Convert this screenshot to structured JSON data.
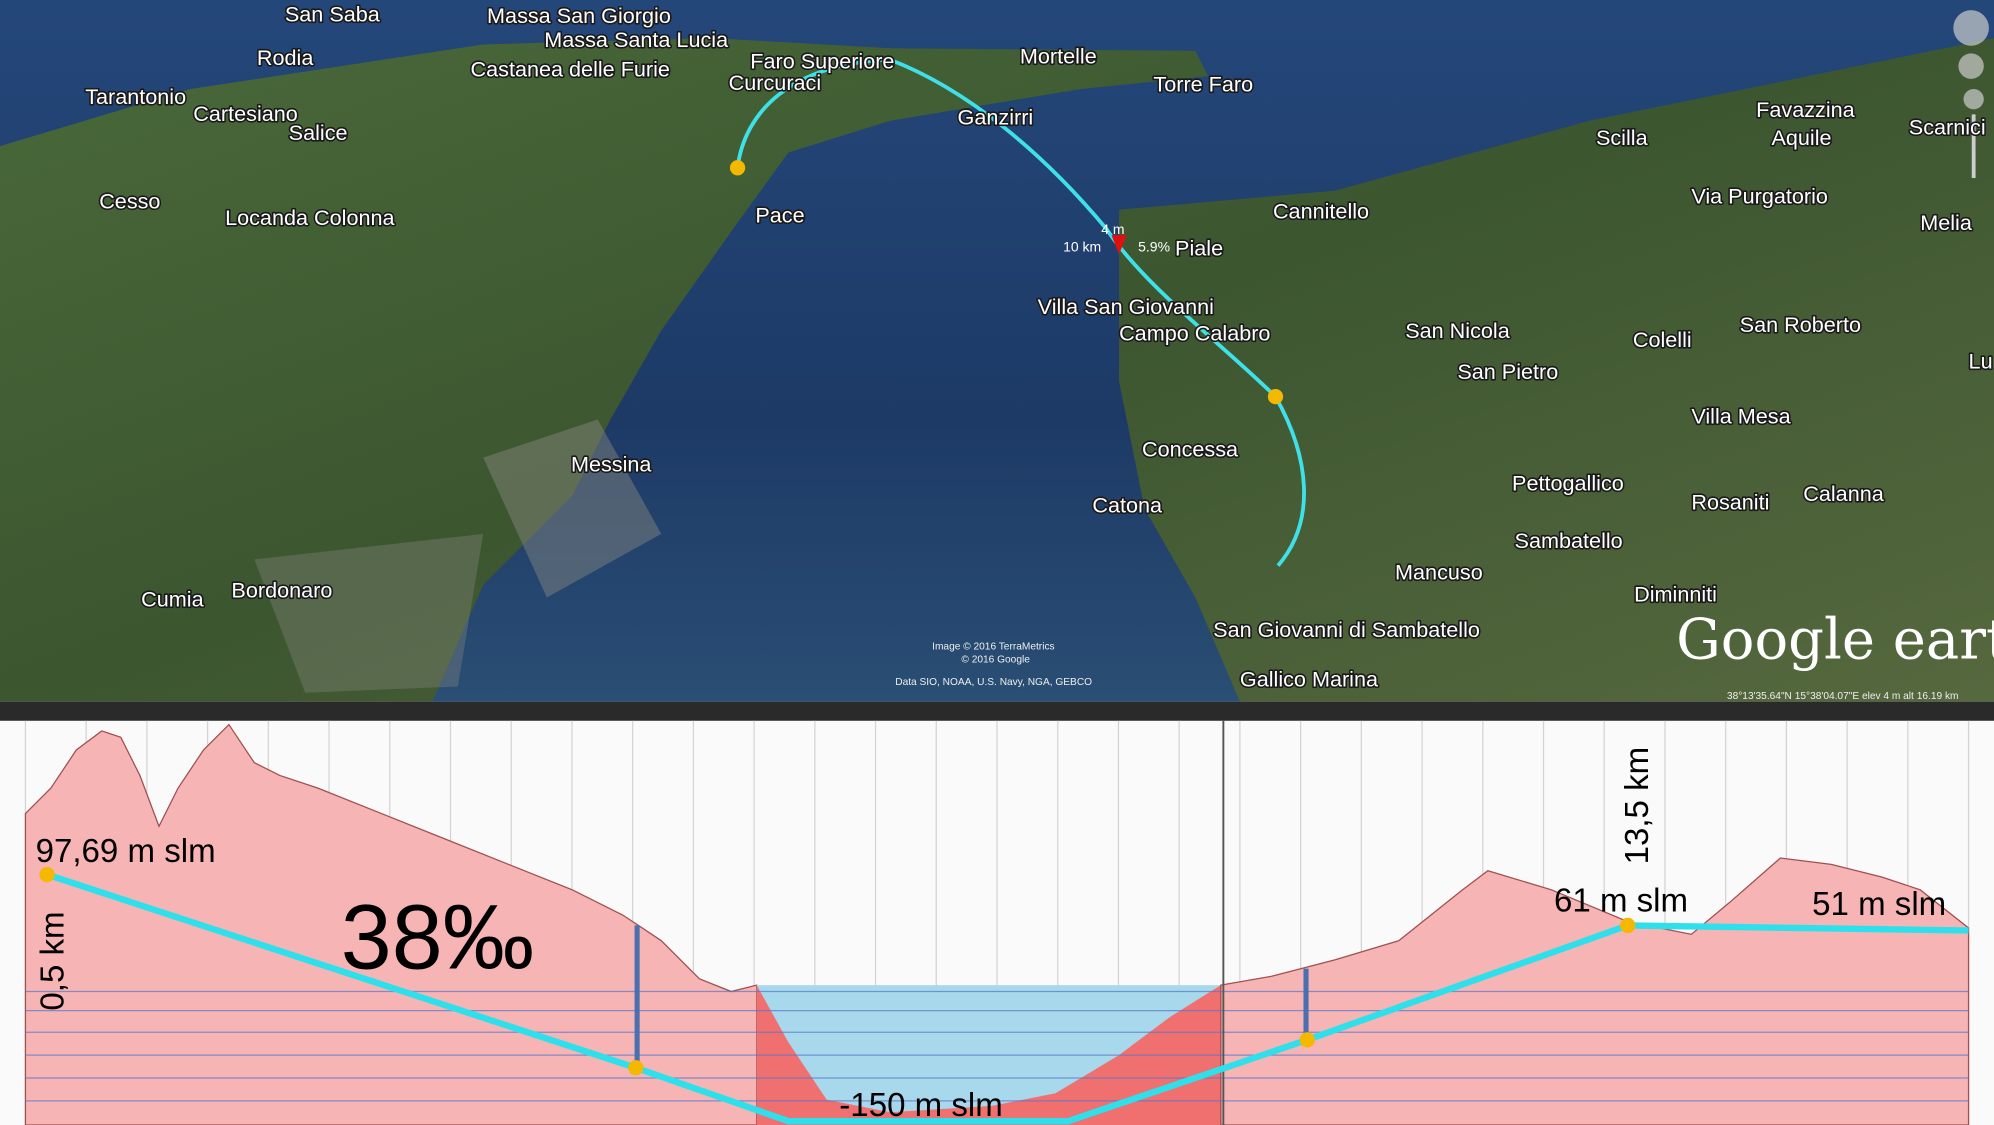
{
  "map": {
    "places": [
      "San Saba",
      "Massa San Giorgio",
      "Massa Santa Lucia",
      "Rodia",
      "Castanea delle Furie",
      "Faro Superiore",
      "Mortelle",
      "Torre Faro",
      "Curcuraci",
      "Tarantonio",
      "Cartesiano",
      "Salice",
      "Ganzirri",
      "Scilla",
      "Favazzina",
      "Aquile",
      "Scarnici",
      "Cesso",
      "Locanda Colonna",
      "Pace",
      "Cannitello",
      "Via Purgatorio",
      "Melia",
      "Piale",
      "Villa San Giovanni",
      "Campo Calabro",
      "San Nicola",
      "Colelli",
      "San Roberto",
      "San Pietro",
      "Villa Mesa",
      "Messina",
      "Concessa",
      "Pettogallico",
      "Rosaniti",
      "Calanna",
      "Catona",
      "Sambatello",
      "Mancuso",
      "Diminniti",
      "Cumia",
      "Bordonaro",
      "San Giovanni di Sambatello",
      "Gallico Marina",
      "Lu"
    ],
    "tooltip": [
      "4 m",
      "10 km",
      "5.9%"
    ],
    "credits": [
      "Image © 2016 TerraMetrics",
      "© 2016 Google",
      "Data SIO, NOAA, U.S. Navy, NGA, GEBCO"
    ],
    "logo": "Google earth",
    "status": "38°13'35.64\"N 15°38'04.07\"E elev 4 m alt 16.19 km"
  },
  "profile": {
    "annotations": [
      "97,69 m slm",
      "38‰",
      "0,5 km",
      "-150 m slm",
      "13,5 km",
      "61 m slm",
      "51 m slm"
    ]
  }
}
